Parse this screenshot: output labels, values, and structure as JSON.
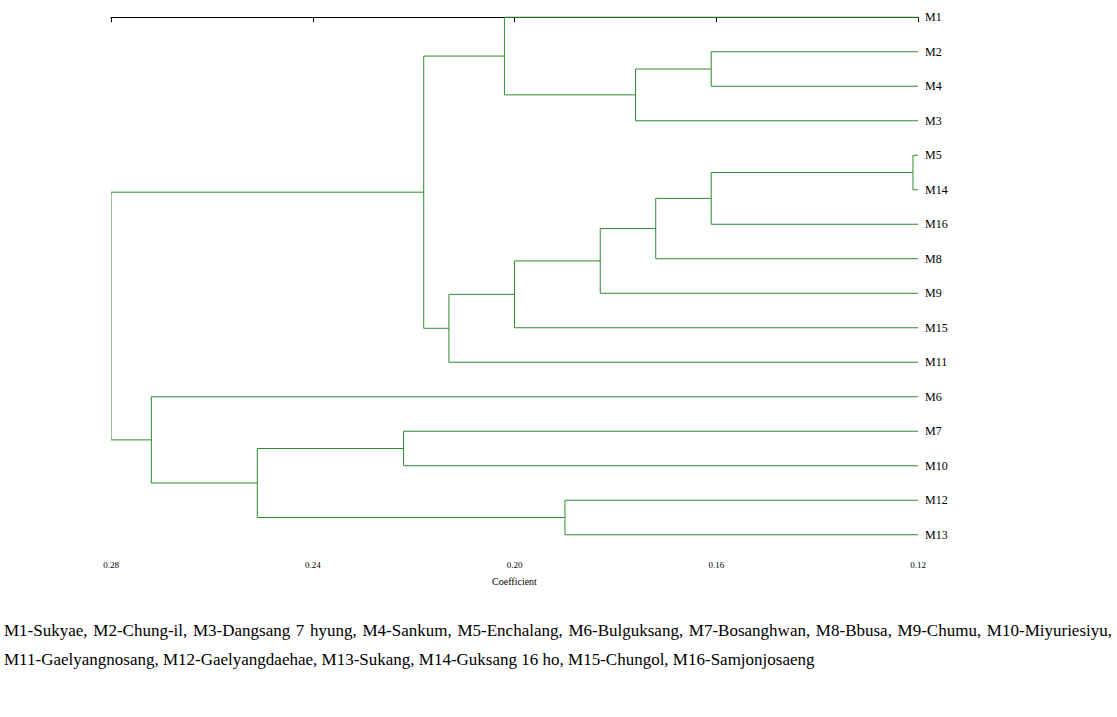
{
  "chart_data": {
    "type": "dendrogram",
    "xlabel": "Coefficient",
    "xlim": [
      0.28,
      0.12
    ],
    "xticks": [
      0.28,
      0.24,
      {
        "value": 0.2,
        "label": "0.20"
      },
      0.16,
      0.12
    ],
    "color": "#2e8b2e",
    "tree": {
      "height": 0.28,
      "children": [
        {
          "height": 0.218,
          "children": [
            {
              "height": 0.202,
              "children": [
                "M1",
                {
                  "height": 0.176,
                  "children": [
                    {
                      "height": 0.161,
                      "children": [
                        "M2",
                        "M4"
                      ]
                    },
                    "M3"
                  ]
                }
              ]
            },
            {
              "height": 0.213,
              "children": [
                {
                  "height": 0.2,
                  "children": [
                    {
                      "height": 0.183,
                      "children": [
                        {
                          "height": 0.172,
                          "children": [
                            {
                              "height": 0.161,
                              "children": [
                                {
                                  "height": 0.121,
                                  "children": [
                                    "M5",
                                    "M14"
                                  ]
                                },
                                "M16"
                              ]
                            },
                            "M8"
                          ]
                        },
                        "M9"
                      ]
                    },
                    "M15"
                  ]
                },
                "M11"
              ]
            }
          ]
        },
        {
          "height": 0.272,
          "children": [
            "M6",
            {
              "height": 0.251,
              "children": [
                {
                  "height": 0.222,
                  "children": [
                    "M7",
                    "M10"
                  ]
                },
                {
                  "height": 0.19,
                  "children": [
                    "M12",
                    "M13"
                  ]
                }
              ]
            }
          ]
        }
      ]
    },
    "caption": "M1-Sukyae, M2-Chung-il, M3-Dangsang 7 hyung, M4-Sankum, M5-Enchalang, M6-Bulguksang, M7-Bosanghwan, M8-Bbusa, M9-Chumu, M10-Miyuriesiyu, M11-Gaelyangnosang, M12-Gaelyangdaehae, M13-Sukang, M14-Guksang 16 ho, M15-Chungol, M16-Samjonjosaeng"
  }
}
